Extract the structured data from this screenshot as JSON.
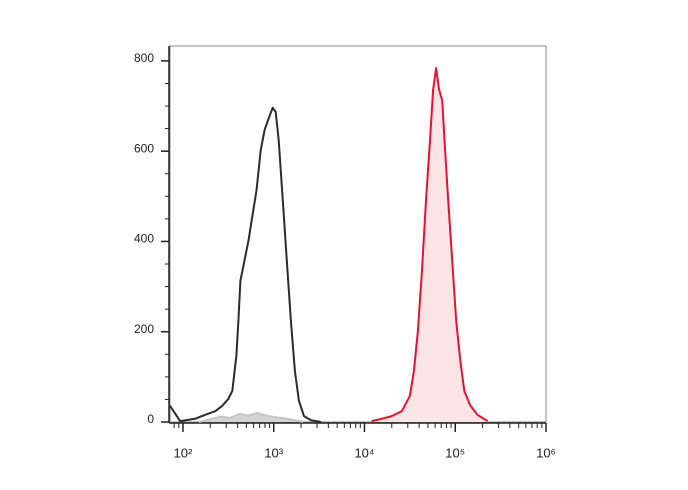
{
  "chart_data": {
    "type": "line",
    "xscale": "log",
    "xlim": [
      72,
      1000000
    ],
    "ylim": [
      0,
      833
    ],
    "xticks": [
      {
        "value": 100,
        "label": "10²"
      },
      {
        "value": 1000,
        "label": "10³"
      },
      {
        "value": 10000,
        "label": "10⁴"
      },
      {
        "value": 100000,
        "label": "10⁵"
      },
      {
        "value": 1000000,
        "label": "10⁶"
      }
    ],
    "x_minor_ticks": [
      80,
      90,
      200,
      300,
      400,
      500,
      600,
      700,
      800,
      900,
      2000,
      3000,
      4000,
      5000,
      6000,
      7000,
      8000,
      9000,
      20000,
      30000,
      40000,
      50000,
      60000,
      70000,
      80000,
      90000,
      200000,
      300000,
      400000,
      500000,
      600000,
      700000,
      800000,
      900000
    ],
    "yticks": [
      0,
      200,
      400,
      600,
      800
    ],
    "y_minor_ticks": [
      50,
      100,
      150,
      250,
      300,
      350,
      450,
      500,
      550,
      650,
      700,
      750
    ],
    "series": [
      {
        "color": "#c4c4c4",
        "fill": "#d4d4d4",
        "x": [
          150,
          200,
          260,
          330,
          420,
          520,
          650,
          800,
          1000,
          1300,
          1700,
          2100
        ],
        "values": [
          0,
          6,
          12,
          9,
          18,
          14,
          20,
          15,
          11,
          8,
          4,
          0
        ]
      },
      {
        "color": "#2b2b2b",
        "fill": null,
        "x": [
          72,
          93,
          136,
          176,
          227,
          271,
          316,
          350,
          388,
          408,
          430,
          476,
          527,
          584,
          647,
          718,
          794,
          880,
          975,
          1052,
          1136,
          1259,
          1394,
          1545,
          1711,
          1896,
          2154,
          2575,
          3327
        ],
        "values": [
          36,
          2,
          7,
          16,
          24,
          36,
          51,
          69,
          147,
          224,
          313,
          358,
          402,
          458,
          513,
          602,
          647,
          673,
          696,
          687,
          624,
          491,
          358,
          224,
          113,
          47,
          13,
          4,
          0
        ]
      },
      {
        "color": "#e8112d",
        "fill": "#fde4e6",
        "x": [
          11970,
          15450,
          19950,
          25760,
          31620,
          35000,
          38800,
          43000,
          47600,
          52700,
          57000,
          61500,
          66400,
          71800,
          77400,
          83600,
          92600,
          102600,
          113700,
          125900,
          146800,
          175400,
          227000
        ],
        "values": [
          2,
          7,
          13,
          24,
          58,
          113,
          202,
          336,
          491,
          624,
          736,
          784,
          736,
          713,
          602,
          491,
          358,
          224,
          136,
          69,
          36,
          16,
          2
        ]
      }
    ]
  }
}
